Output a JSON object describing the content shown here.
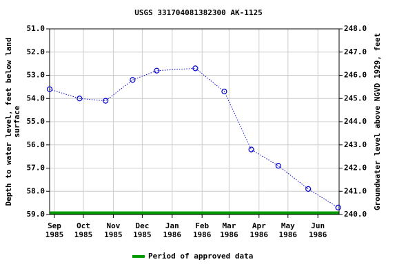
{
  "chart_data": {
    "type": "line",
    "title": "USGS 331704081382300 AK-1125",
    "ylabel": [
      "Depth to water level, feet below land",
      "surface"
    ],
    "y2label": "Groundwater level above NGVD 1929, feet",
    "xlim": [
      "1985-08-27",
      "1986-06-23"
    ],
    "xticks": [
      {
        "value": "1985-09-01",
        "label": [
          "Sep",
          "1985"
        ]
      },
      {
        "value": "1985-10-01",
        "label": [
          "Oct",
          "1985"
        ]
      },
      {
        "value": "1985-11-01",
        "label": [
          "Nov",
          "1985"
        ]
      },
      {
        "value": "1985-12-01",
        "label": [
          "Dec",
          "1985"
        ]
      },
      {
        "value": "1986-01-01",
        "label": [
          "Jan",
          "1986"
        ]
      },
      {
        "value": "1986-02-01",
        "label": [
          "Feb",
          "1986"
        ]
      },
      {
        "value": "1986-03-01",
        "label": [
          "Mar",
          "1986"
        ]
      },
      {
        "value": "1986-04-01",
        "label": [
          "Apr",
          "1986"
        ]
      },
      {
        "value": "1986-05-01",
        "label": [
          "May",
          "1986"
        ]
      },
      {
        "value": "1986-06-01",
        "label": [
          "Jun",
          "1986"
        ]
      }
    ],
    "ylim": [
      51,
      59
    ],
    "yinverted": true,
    "yticks": [
      {
        "value": 51,
        "label": "51.0"
      },
      {
        "value": 52,
        "label": "52.0"
      },
      {
        "value": 53,
        "label": "53.0"
      },
      {
        "value": 54,
        "label": "54.0"
      },
      {
        "value": 55,
        "label": "55.0"
      },
      {
        "value": 56,
        "label": "56.0"
      },
      {
        "value": 57,
        "label": "57.0"
      },
      {
        "value": 58,
        "label": "58.0"
      },
      {
        "value": 59,
        "label": "59.0"
      }
    ],
    "y2lim": [
      240,
      248
    ],
    "y2ticks": [
      {
        "value": 240,
        "label": "240.0"
      },
      {
        "value": 241,
        "label": "241.0"
      },
      {
        "value": 242,
        "label": "242.0"
      },
      {
        "value": 243,
        "label": "243.0"
      },
      {
        "value": 244,
        "label": "244.0"
      },
      {
        "value": 245,
        "label": "245.0"
      },
      {
        "value": 246,
        "label": "246.0"
      },
      {
        "value": 247,
        "label": "247.0"
      },
      {
        "value": 248,
        "label": "248.0"
      }
    ],
    "grid": true,
    "series": [
      {
        "color": "#0000cc",
        "x": [
          "1985-08-27",
          "1985-09-27",
          "1985-10-24",
          "1985-11-21",
          "1985-12-16",
          "1986-01-25",
          "1986-02-24",
          "1986-03-24",
          "1986-04-21",
          "1986-05-22",
          "1986-06-22"
        ],
        "values": [
          53.6,
          54.0,
          54.1,
          53.2,
          52.8,
          52.7,
          53.7,
          56.2,
          56.9,
          57.9,
          58.7
        ]
      }
    ],
    "approved_periods": [
      {
        "name": "Period of approved data",
        "color": "#009900",
        "start": "1985-08-27",
        "end": "1986-06-23"
      }
    ]
  }
}
